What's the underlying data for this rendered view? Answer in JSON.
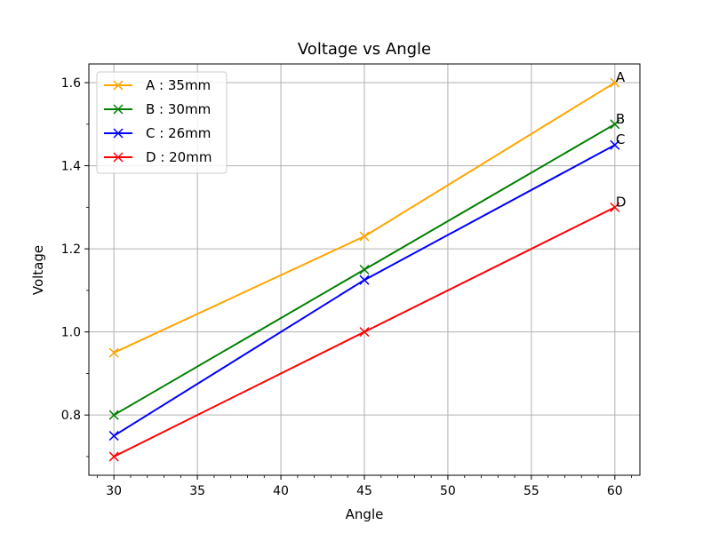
{
  "chart_data": {
    "type": "line",
    "title": "Voltage vs Angle",
    "xlabel": "Angle",
    "ylabel": "Voltage",
    "x": [
      30,
      45,
      60
    ],
    "xlim": [
      28.5,
      61.5
    ],
    "ylim": [
      0.655,
      1.645
    ],
    "xticks": [
      30,
      35,
      40,
      45,
      50,
      55,
      60
    ],
    "xtick_labels": [
      "30",
      "35",
      "40",
      "45",
      "50",
      "55",
      "60"
    ],
    "yticks": [
      0.8,
      1.0,
      1.2,
      1.4,
      1.6
    ],
    "ytick_labels": [
      "0.8",
      "1.0",
      "1.2",
      "1.4",
      "1.6"
    ],
    "grid": true,
    "legend_position": "top-left",
    "marker": "x",
    "series": [
      {
        "name": "A : 35mm",
        "label": "A",
        "color": "#FFA500",
        "values": [
          0.95,
          1.23,
          1.6
        ]
      },
      {
        "name": "B : 30mm",
        "label": "B",
        "color": "#008000",
        "values": [
          0.8,
          1.15,
          1.5
        ]
      },
      {
        "name": "C : 26mm",
        "label": "C",
        "color": "#0000FF",
        "values": [
          0.75,
          1.125,
          1.45
        ]
      },
      {
        "name": "D : 20mm",
        "label": "D",
        "color": "#FF0000",
        "values": [
          0.7,
          1.0,
          1.3
        ]
      }
    ]
  }
}
